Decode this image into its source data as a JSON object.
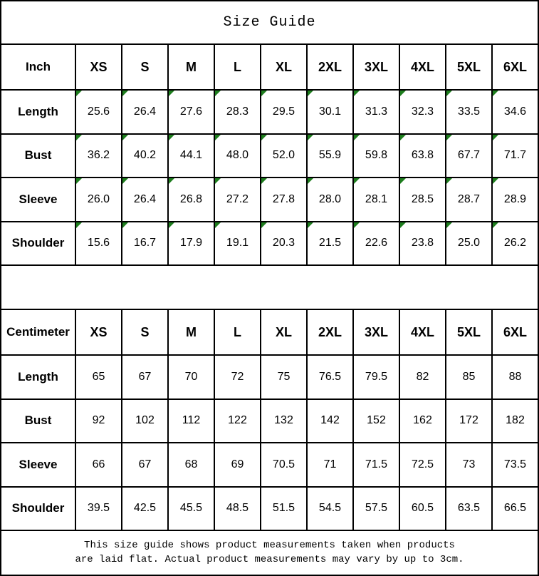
{
  "title": "Size Guide",
  "sizes": [
    "XS",
    "S",
    "M",
    "L",
    "XL",
    "2XL",
    "3XL",
    "4XL",
    "5XL",
    "6XL"
  ],
  "tables": [
    {
      "unit_label": "Inch",
      "has_markers": true,
      "rows": [
        {
          "label": "Length",
          "values": [
            "25.6",
            "26.4",
            "27.6",
            "28.3",
            "29.5",
            "30.1",
            "31.3",
            "32.3",
            "33.5",
            "34.6"
          ]
        },
        {
          "label": "Bust",
          "values": [
            "36.2",
            "40.2",
            "44.1",
            "48.0",
            "52.0",
            "55.9",
            "59.8",
            "63.8",
            "67.7",
            "71.7"
          ]
        },
        {
          "label": "Sleeve",
          "values": [
            "26.0",
            "26.4",
            "26.8",
            "27.2",
            "27.8",
            "28.0",
            "28.1",
            "28.5",
            "28.7",
            "28.9"
          ]
        },
        {
          "label": "Shoulder",
          "values": [
            "15.6",
            "16.7",
            "17.9",
            "19.1",
            "20.3",
            "21.5",
            "22.6",
            "23.8",
            "25.0",
            "26.2"
          ]
        }
      ]
    },
    {
      "unit_label": "Centimeter",
      "has_markers": false,
      "rows": [
        {
          "label": "Length",
          "values": [
            "65",
            "67",
            "70",
            "72",
            "75",
            "76.5",
            "79.5",
            "82",
            "85",
            "88"
          ]
        },
        {
          "label": "Bust",
          "values": [
            "92",
            "102",
            "112",
            "122",
            "132",
            "142",
            "152",
            "162",
            "172",
            "182"
          ]
        },
        {
          "label": "Sleeve",
          "values": [
            "66",
            "67",
            "68",
            "69",
            "70.5",
            "71",
            "71.5",
            "72.5",
            "73",
            "73.5"
          ]
        },
        {
          "label": "Shoulder",
          "values": [
            "39.5",
            "42.5",
            "45.5",
            "48.5",
            "51.5",
            "54.5",
            "57.5",
            "60.5",
            "63.5",
            "66.5"
          ]
        }
      ]
    }
  ],
  "footer": {
    "line1": "This size guide shows product measurements taken when products",
    "line2": "are laid flat. Actual product measurements may vary by up to 3cm."
  },
  "colors": {
    "marker_green": "#1e7e1e",
    "border": "#000000",
    "background": "#ffffff",
    "text": "#000000"
  }
}
